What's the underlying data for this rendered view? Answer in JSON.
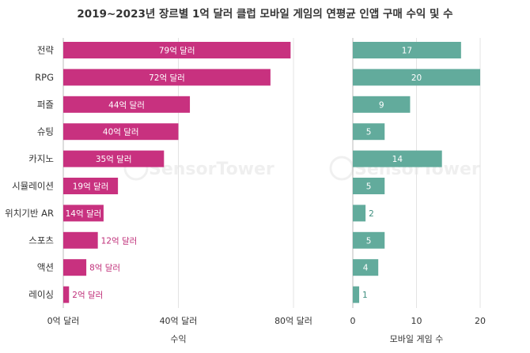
{
  "chart_data": {
    "type": "bar",
    "orientation": "horizontal",
    "title": "2019~2023년 장르별 1억 달러 클럽 모바일 게임의 연평균 인앱 구매 수익 및 수",
    "categories": [
      "전략",
      "RPG",
      "퍼즐",
      "슈팅",
      "카지노",
      "시뮬레이션",
      "위치기반 AR",
      "스포츠",
      "액션",
      "레이싱"
    ],
    "series": [
      {
        "name": "수익",
        "xlabel": "수익",
        "values": [
          79,
          72,
          44,
          40,
          35,
          19,
          14,
          12,
          8,
          2
        ],
        "value_labels": [
          "79억 달러",
          "72억 달러",
          "44억 달러",
          "40억 달러",
          "35억 달러",
          "19억 달러",
          "14억 달러",
          "12억 달러",
          "8억 달러",
          "2억 달러"
        ],
        "xlim": [
          0,
          80
        ],
        "ticks": [
          0,
          40,
          80
        ],
        "tick_labels": [
          "0억 달러",
          "40억 달러",
          "80억 달러"
        ],
        "color": "#c8317f",
        "outside_color": "#c0307a"
      },
      {
        "name": "모바일 게임 수",
        "xlabel": "모바일 게임 수",
        "values": [
          17,
          20,
          9,
          5,
          14,
          5,
          2,
          5,
          4,
          1
        ],
        "value_labels": [
          "17",
          "20",
          "9",
          "5",
          "14",
          "5",
          "2",
          "5",
          "4",
          "1"
        ],
        "xlim": [
          0,
          20
        ],
        "ticks": [
          0,
          10,
          20
        ],
        "tick_labels": [
          "0",
          "10",
          "20"
        ],
        "color": "#62ab9c",
        "outside_color": "#3f8f7f"
      }
    ],
    "grid": true,
    "legend": "none",
    "watermark": "SensorTower"
  }
}
